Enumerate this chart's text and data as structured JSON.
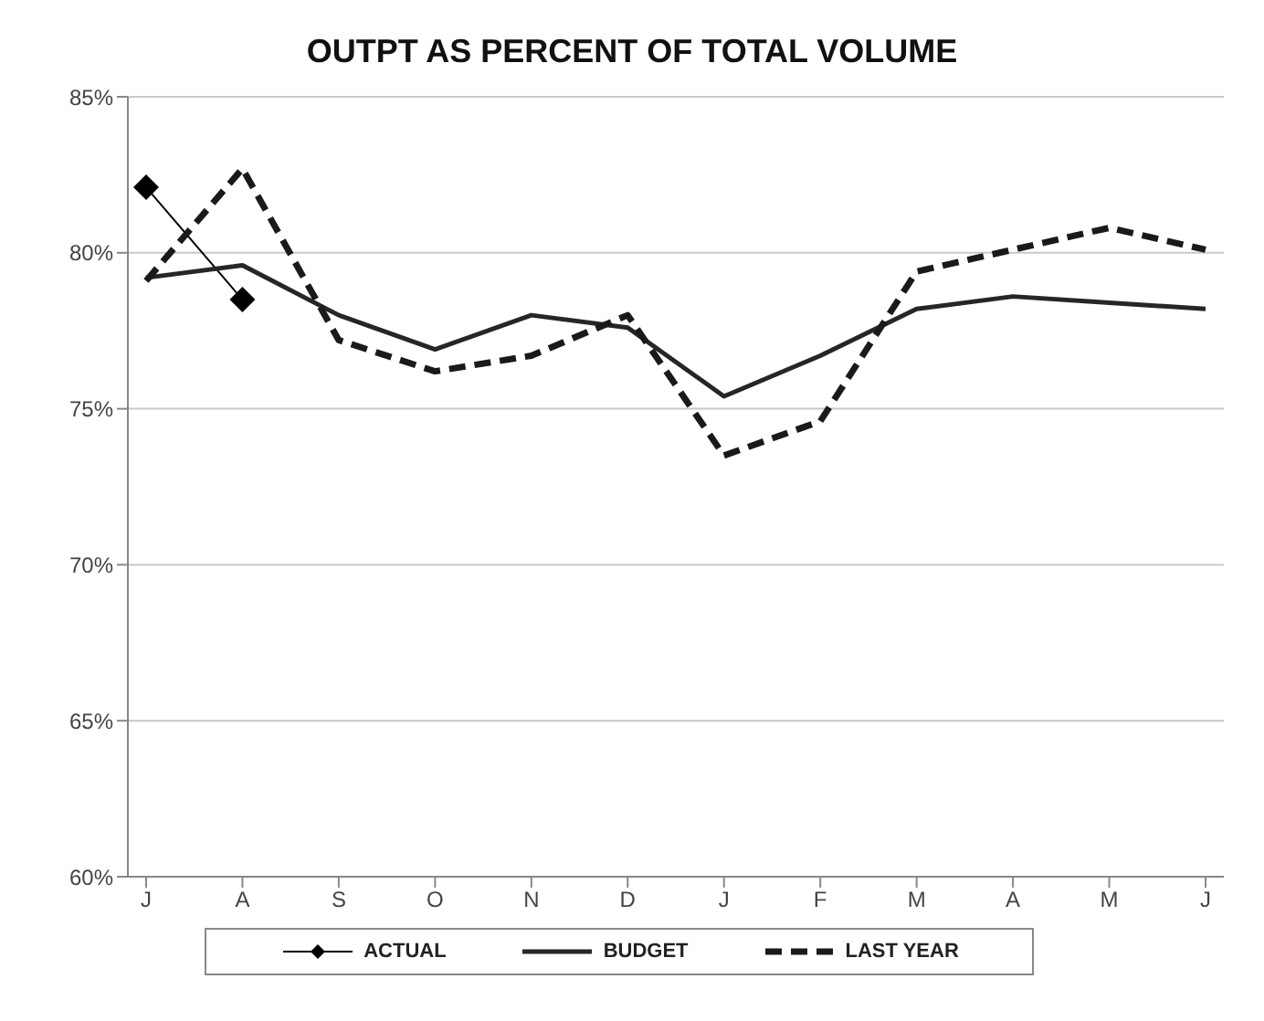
{
  "chart_data": {
    "type": "line",
    "title": "OUTPT AS PERCENT OF TOTAL VOLUME",
    "categories": [
      "J",
      "A",
      "S",
      "O",
      "N",
      "D",
      "J",
      "F",
      "M",
      "A",
      "M",
      "J"
    ],
    "series": [
      {
        "name": "ACTUAL",
        "color": "#000000",
        "marker": "diamond",
        "line_style": "solid",
        "values": [
          82.1,
          78.5,
          null,
          null,
          null,
          null,
          null,
          null,
          null,
          null,
          null,
          null
        ]
      },
      {
        "name": "BUDGET",
        "color": "#262626",
        "marker": "none",
        "line_style": "solid",
        "values": [
          79.2,
          79.6,
          78.0,
          76.9,
          78.0,
          77.6,
          75.4,
          76.7,
          78.2,
          78.6,
          78.4,
          78.2
        ]
      },
      {
        "name": "LAST YEAR",
        "color": "#1a1a1a",
        "marker": "none",
        "line_style": "dashed",
        "values": [
          79.1,
          82.7,
          77.2,
          76.2,
          76.7,
          78.0,
          73.5,
          74.6,
          79.4,
          80.1,
          80.8,
          80.1
        ]
      }
    ],
    "ylim": [
      60,
      85
    ],
    "yticks": [
      {
        "value": 60,
        "label": "60%"
      },
      {
        "value": 65,
        "label": "65%"
      },
      {
        "value": 70,
        "label": "70%"
      },
      {
        "value": 75,
        "label": "75%"
      },
      {
        "value": 80,
        "label": "80%"
      },
      {
        "value": 85,
        "label": "85%"
      }
    ],
    "grid": "y",
    "legend": "bottom"
  }
}
